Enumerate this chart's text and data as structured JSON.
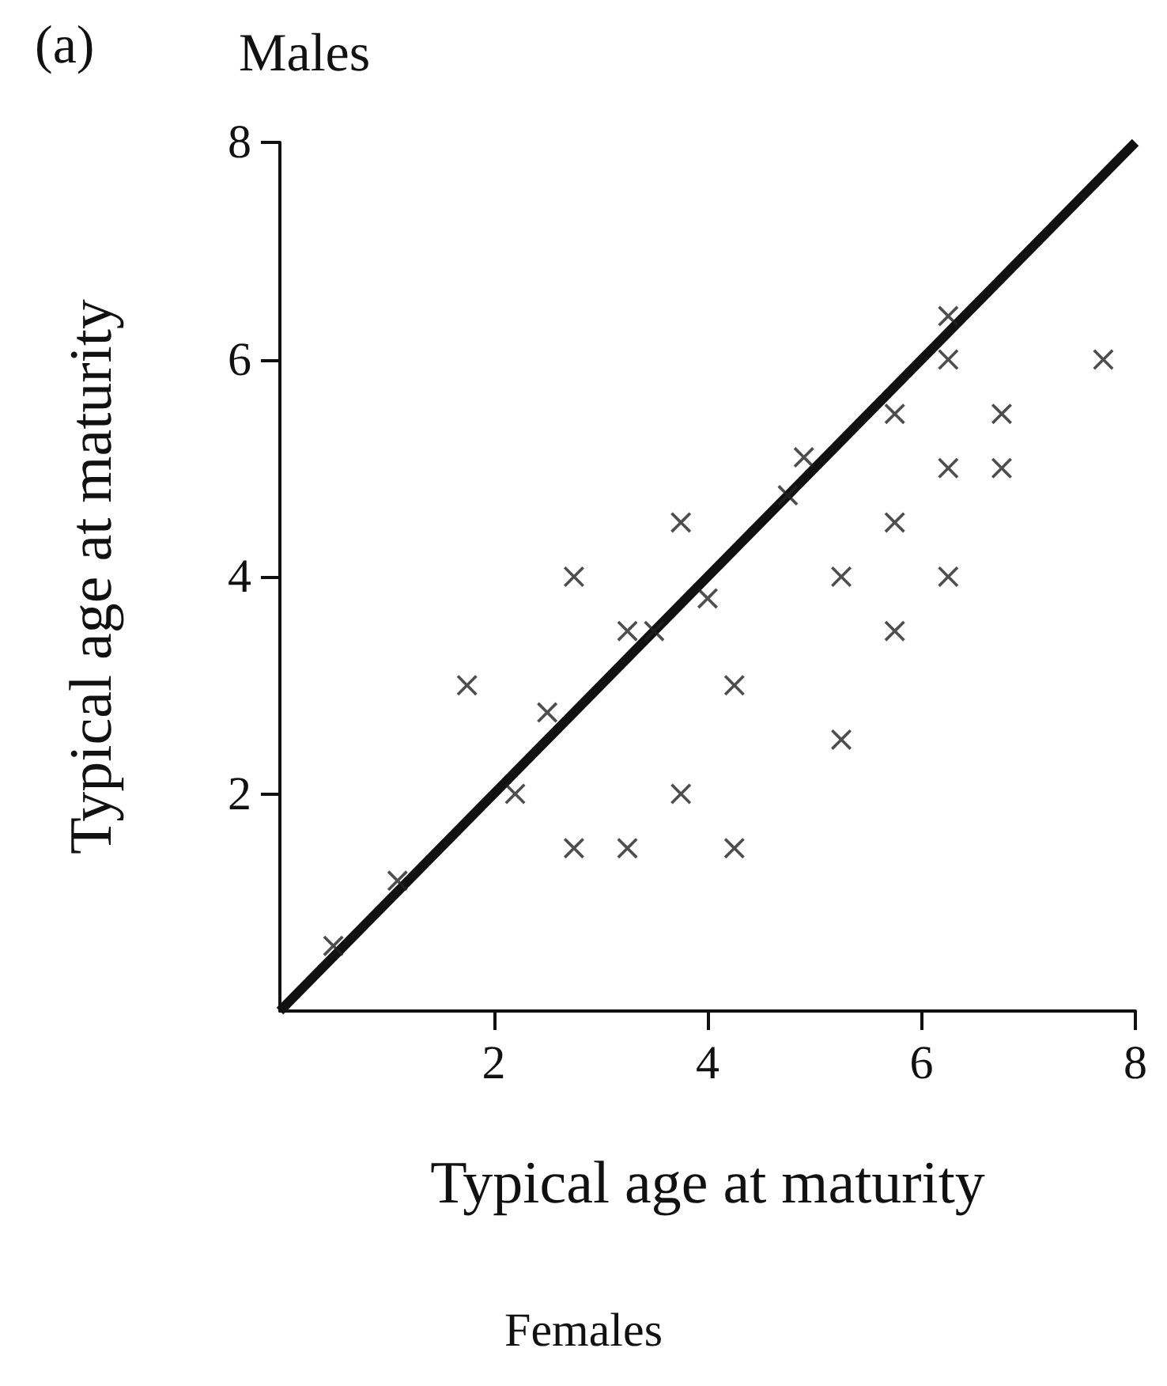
{
  "chart_data": {
    "type": "scatter",
    "title": "Males",
    "xlabel": "Typical age at maturity",
    "ylabel": "Typical age at maturity",
    "annotations": [
      "(a)",
      "Females"
    ],
    "xlim": [
      0,
      8
    ],
    "ylim": [
      0,
      8
    ],
    "xticks": [
      2,
      4,
      6,
      8
    ],
    "yticks": [
      2,
      4,
      6,
      8
    ],
    "grid": false,
    "marker": "cross",
    "series": [
      {
        "color": "#222222",
        "x": [
          6.25,
          7.7,
          6.25,
          5.75,
          6.75,
          6.25,
          6.75,
          4.9,
          4.75,
          3.75,
          5.75,
          2.75,
          5.25,
          6.25,
          4,
          5.75,
          3.25,
          3.5,
          1.75,
          4.25,
          2.5,
          5.25,
          2.2,
          3.75,
          2.75,
          3.25,
          4.25,
          1.1,
          0.5
        ],
        "values": [
          6.4,
          6,
          6,
          5.5,
          5.5,
          5,
          5,
          5.1,
          4.75,
          4.5,
          4.5,
          4,
          4,
          4,
          3.8,
          3.5,
          3.5,
          3.5,
          3,
          3,
          2.75,
          2.5,
          2,
          2,
          1.5,
          1.5,
          1.5,
          1.2,
          0.6
        ]
      },
      {
        "type": "line",
        "color": "#111111",
        "line_style": "solid",
        "marker": "none",
        "x": [
          0,
          8
        ],
        "values": [
          0,
          8
        ]
      }
    ]
  }
}
